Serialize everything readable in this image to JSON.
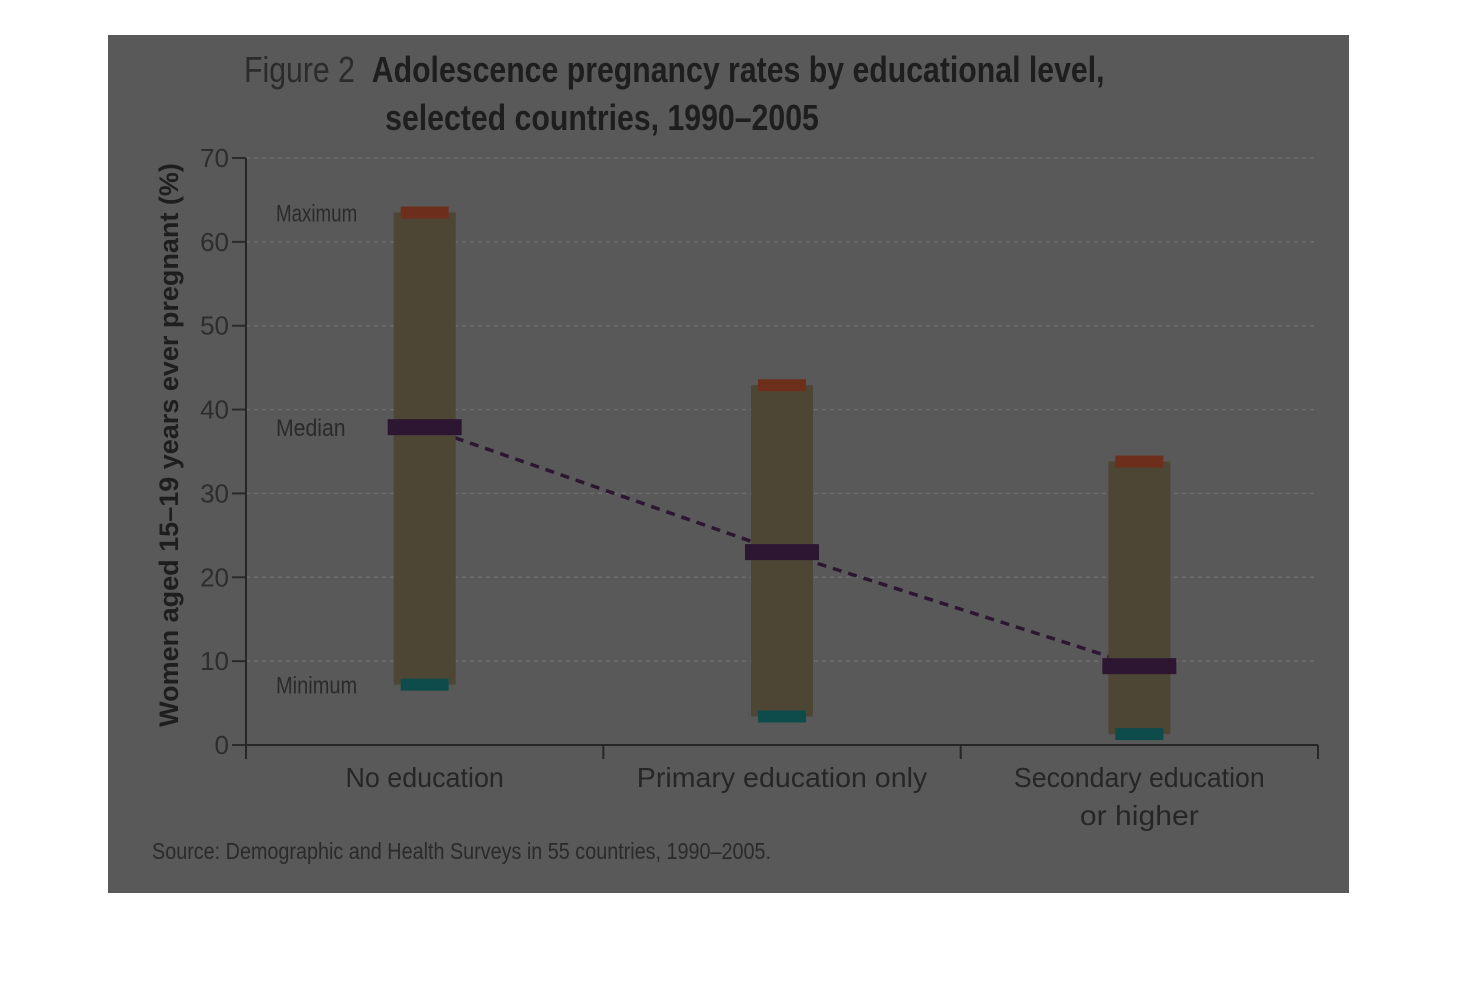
{
  "figure": {
    "label": "Figure 2",
    "title_line1": "Adolescence pregnancy rates by educational level,",
    "title_line2": "selected countries, 1990–2005",
    "source": "Source: Demographic and Health Surveys in 55 countries, 1990–2005."
  },
  "colors": {
    "panel": "#595959",
    "range_bar": "#4e4634",
    "max_marker": "#6e2e1c",
    "median_marker": "#2c1632",
    "min_marker": "#0e4c4c",
    "trend_line": "#2c1632"
  },
  "chart_data": {
    "type": "range",
    "title": "Adolescence pregnancy rates by educational level, selected countries, 1990–2005",
    "ylabel": "Women aged 15–19 years ever pregnant (%)",
    "xlabel": "",
    "ylim": [
      0,
      70
    ],
    "yticks": [
      0,
      10,
      20,
      30,
      40,
      50,
      60,
      70
    ],
    "grid": true,
    "categories": [
      "No education",
      "Primary education only",
      "Secondary education or higher"
    ],
    "category_lines": [
      [
        "No education"
      ],
      [
        "Primary education only"
      ],
      [
        "Secondary education",
        "or higher"
      ]
    ],
    "series": [
      {
        "name": "Maximum",
        "values": [
          63.5,
          42.9,
          33.8
        ]
      },
      {
        "name": "Median",
        "values": [
          37.9,
          23.0,
          9.4
        ]
      },
      {
        "name": "Minimum",
        "values": [
          7.2,
          3.4,
          1.3
        ]
      }
    ],
    "annotations": [
      "Maximum",
      "Median",
      "Minimum"
    ]
  }
}
